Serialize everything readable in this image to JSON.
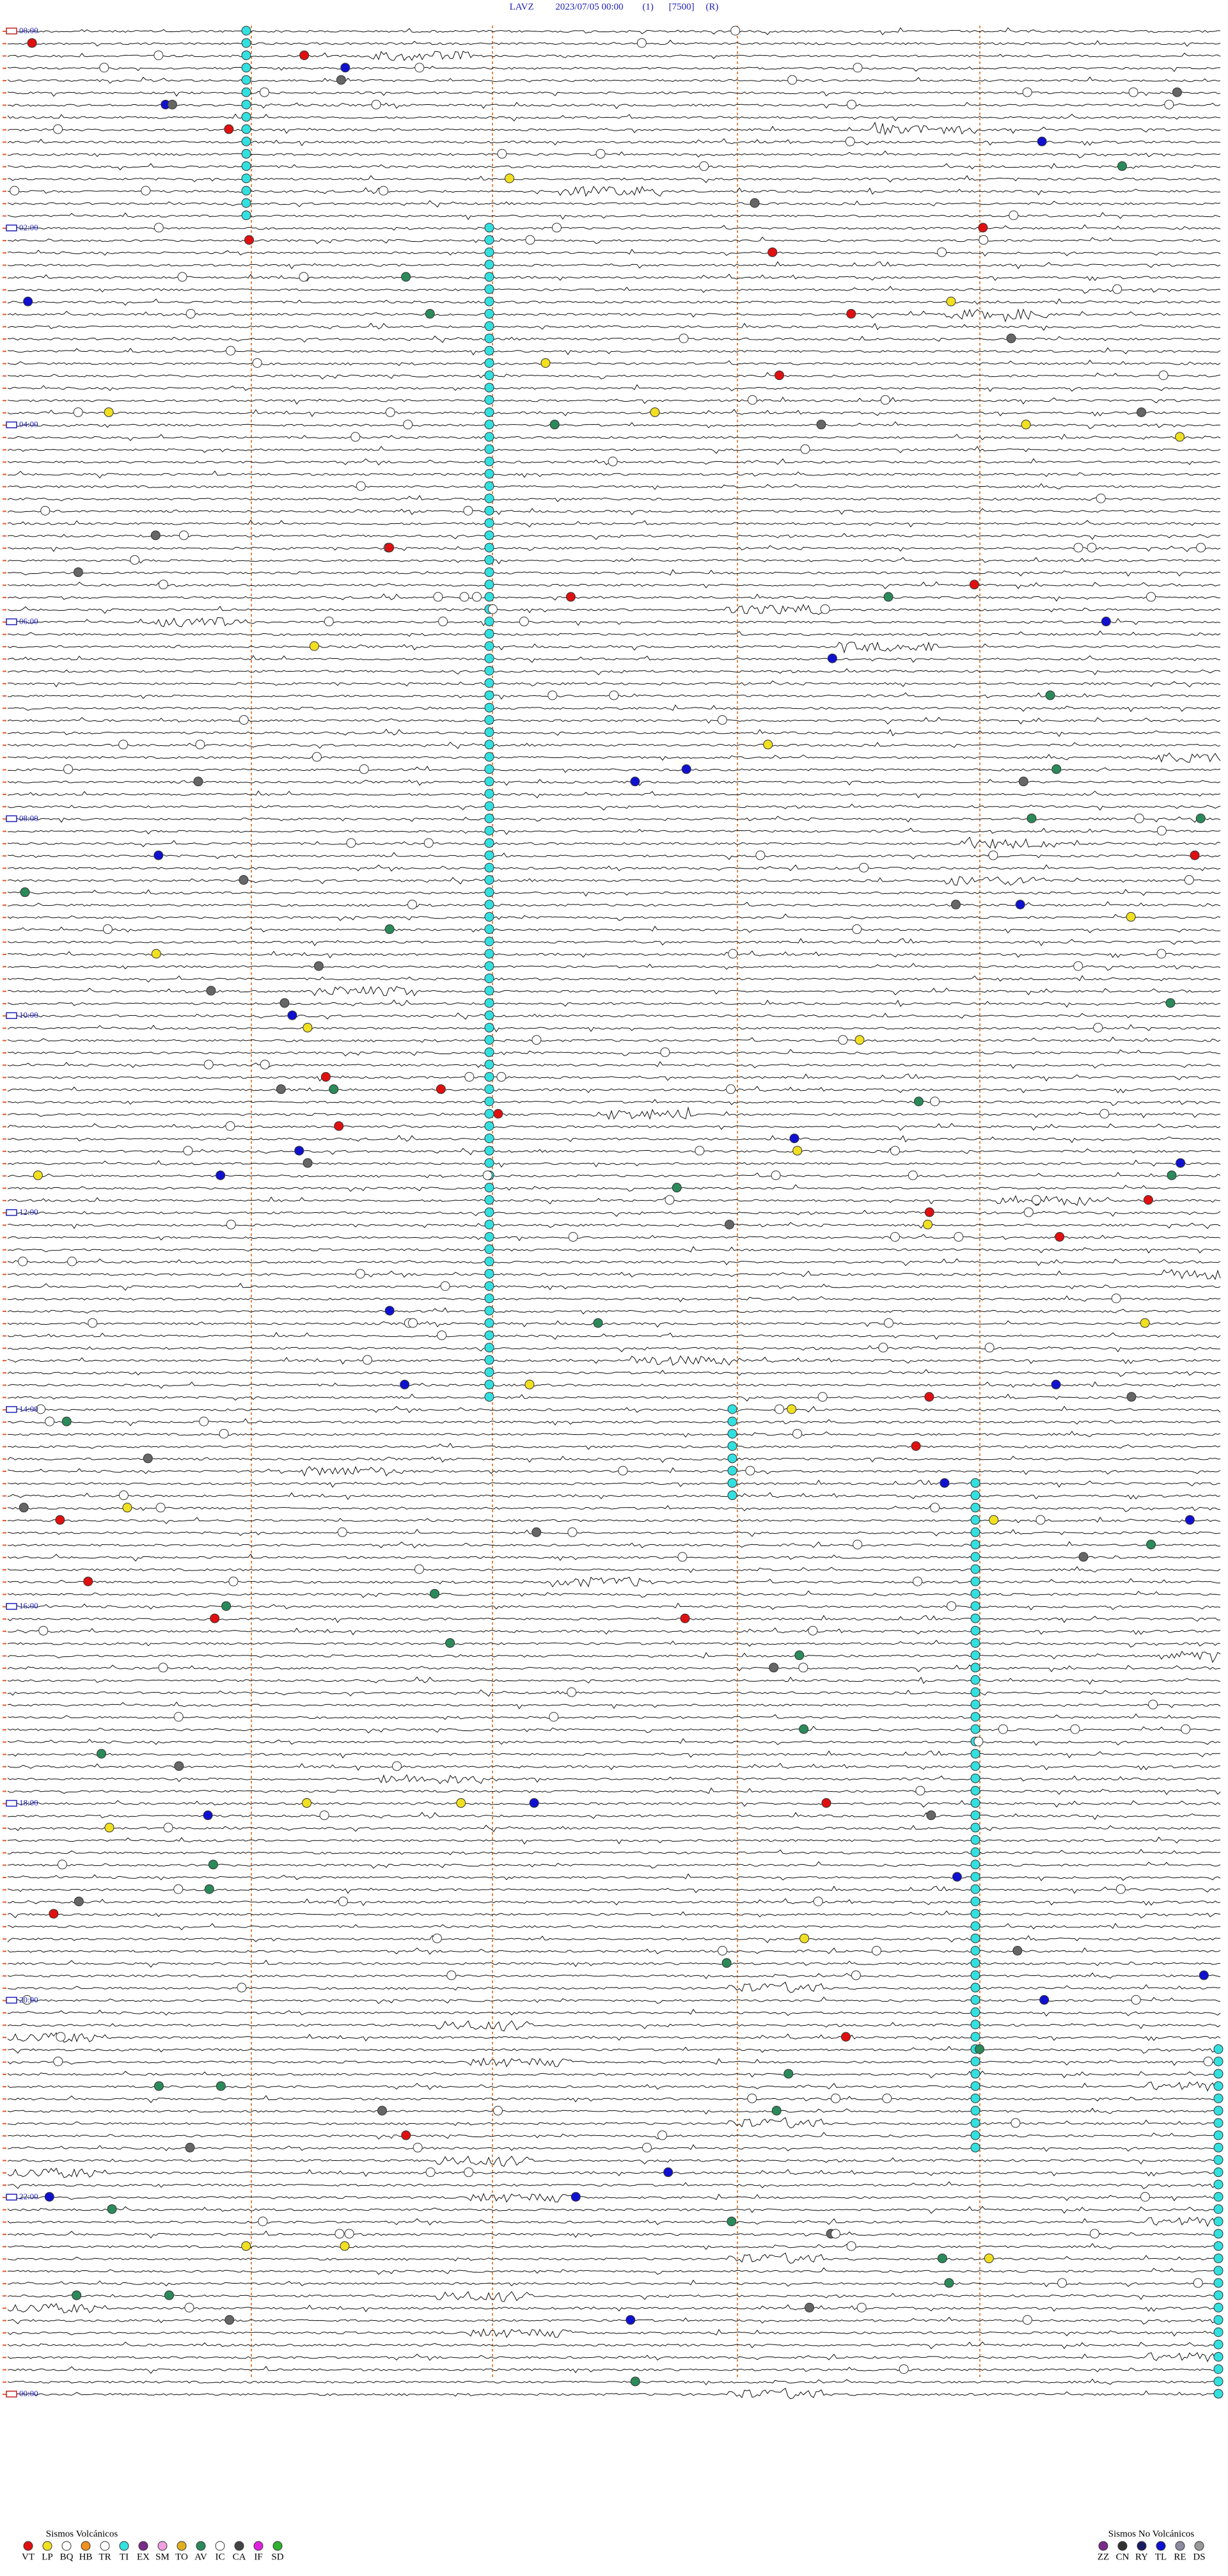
{
  "header": {
    "station": "LAVZ",
    "datetime": "2023/07/05 00:00",
    "channel": "(1)",
    "scale": "[7500]",
    "mode": "(R)"
  },
  "time_labels": [
    "00:00",
    "02:00",
    "04:00",
    "06:00",
    "08:00",
    "10:00",
    "12:00",
    "14:00",
    "16:00",
    "18:00",
    "20:00",
    "22:00",
    "00:00"
  ],
  "legend": {
    "volcanic": {
      "title": "Sismos Volcánicos",
      "codes": [
        "VT",
        "LP",
        "BQ",
        "HB",
        "TR",
        "TI",
        "EX",
        "SM",
        "TO",
        "AV",
        "IC",
        "CA",
        "IF",
        "SD"
      ]
    },
    "non_volcanic": {
      "title": "Sismos No Volcánicos",
      "codes": [
        "ZZ",
        "CN",
        "RY",
        "TL",
        "RE",
        "DS"
      ]
    }
  }
}
